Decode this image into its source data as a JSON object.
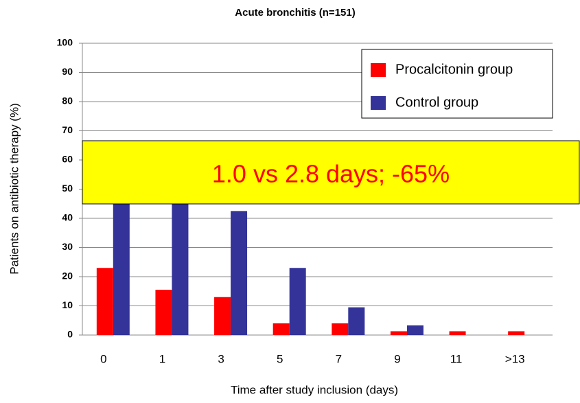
{
  "chart_data": {
    "type": "bar",
    "title": "Acute bronchitis (n=151)",
    "x_label": "Time after study inclusion (days)",
    "y_label": "Patients on antibiotic therapy (%)",
    "annotation": "1.0 vs 2.8 days; -65%",
    "categories": [
      "0",
      "1",
      "3",
      "5",
      "7",
      "9",
      "11",
      ">13"
    ],
    "series": [
      {
        "name": "Procalcitonin group",
        "color": "#ff0000",
        "values": [
          23,
          15.5,
          13,
          4,
          4,
          1.3,
          1.3,
          1.3
        ]
      },
      {
        "name": "Control group",
        "color": "#333399",
        "values": [
          62,
          55,
          42.5,
          23,
          9.5,
          3.3,
          0,
          0
        ]
      }
    ],
    "ylim": [
      0,
      100
    ],
    "yticks": [
      0,
      10,
      20,
      30,
      40,
      50,
      60,
      70,
      80,
      90,
      100
    ],
    "grid": true,
    "legend": "top-right"
  }
}
